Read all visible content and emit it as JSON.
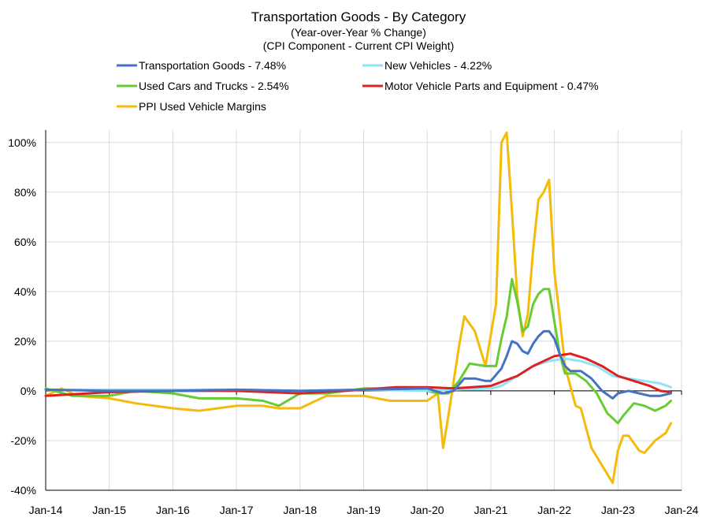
{
  "chart_data": {
    "type": "line",
    "title": "Transportation Goods - By Category",
    "subtitle": [
      "(Year-over-Year % Change)",
      "(CPI Component - Current CPI Weight)"
    ],
    "xlabel": "",
    "ylabel": "",
    "ylim": [
      -40,
      105
    ],
    "yticks": [
      -40,
      -20,
      0,
      20,
      40,
      60,
      80,
      100
    ],
    "ytick_labels": [
      "-40%",
      "-20%",
      "0%",
      "20%",
      "40%",
      "60%",
      "80%",
      "100%"
    ],
    "x_range": [
      "2014-01",
      "2024-01"
    ],
    "xtick_labels": [
      "Jan-14",
      "Jan-15",
      "Jan-16",
      "Jan-17",
      "Jan-18",
      "Jan-19",
      "Jan-20",
      "Jan-21",
      "Jan-22",
      "Jan-23",
      "Jan-24"
    ],
    "grid": true,
    "legend_position": "top",
    "series": [
      {
        "name": "Transportation Goods - 7.48%",
        "color": "#4472C4",
        "x": [
          "2014-01",
          "2015-01",
          "2016-01",
          "2017-01",
          "2018-01",
          "2019-01",
          "2020-01",
          "2020-04",
          "2020-06",
          "2020-08",
          "2020-10",
          "2020-12",
          "2021-01",
          "2021-03",
          "2021-04",
          "2021-05",
          "2021-06",
          "2021-07",
          "2021-08",
          "2021-09",
          "2021-10",
          "2021-11",
          "2021-12",
          "2022-01",
          "2022-02",
          "2022-03",
          "2022-04",
          "2022-05",
          "2022-06",
          "2022-08",
          "2022-10",
          "2022-12",
          "2023-01",
          "2023-03",
          "2023-05",
          "2023-07",
          "2023-09",
          "2023-11"
        ],
        "y": [
          0.5,
          0,
          0,
          0.5,
          0,
          0.5,
          1,
          -1,
          0,
          5,
          5,
          4,
          4,
          9,
          14,
          20,
          19,
          16,
          15,
          19,
          22,
          24,
          24,
          21,
          15,
          10,
          8,
          8,
          8,
          5,
          0,
          -3,
          -1,
          0,
          -1,
          -2,
          -2,
          -1
        ]
      },
      {
        "name": "New Vehicles - 4.22%",
        "color": "#8FE3F3",
        "x": [
          "2014-01",
          "2015-01",
          "2016-01",
          "2017-01",
          "2018-01",
          "2019-01",
          "2020-01",
          "2020-06",
          "2021-01",
          "2021-03",
          "2021-06",
          "2021-09",
          "2021-12",
          "2022-03",
          "2022-06",
          "2022-09",
          "2022-12",
          "2023-03",
          "2023-06",
          "2023-09",
          "2023-11"
        ],
        "y": [
          0.5,
          0.5,
          0.5,
          0.5,
          0,
          0.5,
          0,
          0.5,
          1,
          2,
          6,
          10,
          12,
          13,
          12,
          10,
          6,
          5,
          4,
          3,
          1.5
        ]
      },
      {
        "name": "Used Cars and Trucks - 2.54%",
        "color": "#66CC33",
        "x": [
          "2014-01",
          "2014-06",
          "2015-01",
          "2015-06",
          "2016-01",
          "2016-06",
          "2017-01",
          "2017-06",
          "2017-09",
          "2018-01",
          "2018-06",
          "2019-01",
          "2019-06",
          "2020-01",
          "2020-03",
          "2020-05",
          "2020-07",
          "2020-09",
          "2020-12",
          "2021-02",
          "2021-03",
          "2021-04",
          "2021-05",
          "2021-06",
          "2021-07",
          "2021-08",
          "2021-09",
          "2021-10",
          "2021-11",
          "2021-12",
          "2022-01",
          "2022-02",
          "2022-03",
          "2022-05",
          "2022-07",
          "2022-09",
          "2022-11",
          "2023-01",
          "2023-02",
          "2023-04",
          "2023-06",
          "2023-08",
          "2023-10",
          "2023-11"
        ],
        "y": [
          1,
          -2,
          -2,
          0,
          -1,
          -3,
          -3,
          -4,
          -6,
          -1,
          -1,
          1,
          1,
          0,
          -1,
          -1,
          4,
          11,
          10,
          10,
          21,
          30,
          45,
          36,
          24,
          26,
          35,
          39,
          41,
          41,
          28,
          15,
          7,
          7,
          4,
          -1,
          -9,
          -13,
          -10,
          -5,
          -6,
          -8,
          -6,
          -4
        ]
      },
      {
        "name": "Motor Vehicle Parts and Equipment - 0.47%",
        "color": "#E02020",
        "x": [
          "2014-01",
          "2015-01",
          "2016-01",
          "2017-01",
          "2018-01",
          "2019-01",
          "2019-07",
          "2020-01",
          "2020-06",
          "2021-01",
          "2021-06",
          "2021-09",
          "2022-01",
          "2022-04",
          "2022-07",
          "2022-10",
          "2023-01",
          "2023-04",
          "2023-07",
          "2023-09",
          "2023-11"
        ],
        "y": [
          -2,
          -0.5,
          0,
          0,
          -1,
          0.5,
          1.5,
          1.5,
          1,
          2,
          6,
          10,
          14,
          15,
          13,
          10,
          6,
          4,
          2,
          0,
          -0.5
        ]
      },
      {
        "name": "PPI Used Vehicle Margins",
        "color": "#F5BB0A",
        "x": [
          "2014-01",
          "2014-04",
          "2014-07",
          "2015-01",
          "2015-06",
          "2016-01",
          "2016-06",
          "2017-01",
          "2017-06",
          "2017-09",
          "2018-01",
          "2018-06",
          "2019-01",
          "2019-06",
          "2020-01",
          "2020-03",
          "2020-04",
          "2020-05",
          "2020-07",
          "2020-08",
          "2020-10",
          "2020-11",
          "2020-12",
          "2021-02",
          "2021-03",
          "2021-04",
          "2021-05",
          "2021-06",
          "2021-07",
          "2021-08",
          "2021-09",
          "2021-10",
          "2021-11",
          "2021-12",
          "2022-01",
          "2022-02",
          "2022-03",
          "2022-05",
          "2022-06",
          "2022-08",
          "2022-10",
          "2022-12",
          "2023-01",
          "2023-02",
          "2023-03",
          "2023-05",
          "2023-06",
          "2023-08",
          "2023-10",
          "2023-11"
        ],
        "y": [
          -2,
          1,
          -2,
          -3,
          -5,
          -7,
          -8,
          -6,
          -6,
          -7,
          -7,
          -2,
          -2,
          -4,
          -4,
          -1,
          -23,
          -10,
          18,
          30,
          24,
          17,
          10,
          35,
          100,
          104,
          72,
          38,
          22,
          31,
          57,
          77,
          80,
          85,
          48,
          30,
          10,
          -6,
          -7,
          -23,
          -30,
          -37,
          -24,
          -18,
          -18,
          -24,
          -25,
          -20,
          -17,
          -13
        ]
      }
    ]
  }
}
